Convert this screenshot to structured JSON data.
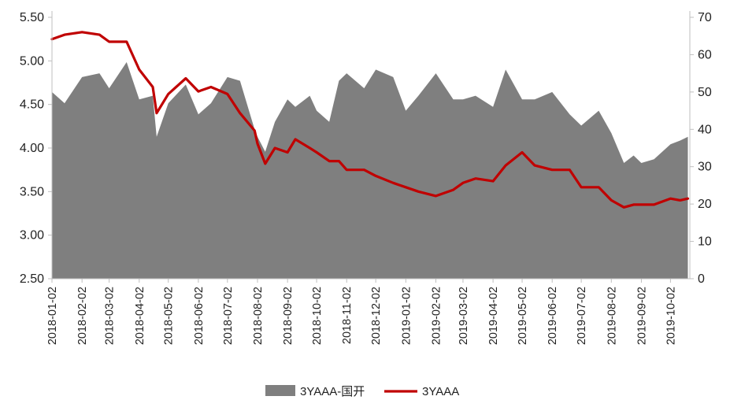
{
  "chart_data": {
    "type": "area+line",
    "x": [
      "2018-01-02",
      "2018-01-15",
      "2018-02-02",
      "2018-02-20",
      "2018-03-02",
      "2018-03-20",
      "2018-04-02",
      "2018-04-16",
      "2018-04-20",
      "2018-05-02",
      "2018-05-20",
      "2018-06-02",
      "2018-06-15",
      "2018-07-02",
      "2018-07-15",
      "2018-07-30",
      "2018-08-02",
      "2018-08-10",
      "2018-08-20",
      "2018-09-02",
      "2018-09-10",
      "2018-09-25",
      "2018-10-02",
      "2018-10-15",
      "2018-10-25",
      "2018-11-02",
      "2018-11-20",
      "2018-12-02",
      "2018-12-20",
      "2019-01-02",
      "2019-01-15",
      "2019-02-02",
      "2019-02-20",
      "2019-03-02",
      "2019-03-15",
      "2019-04-02",
      "2019-04-15",
      "2019-05-02",
      "2019-05-15",
      "2019-06-02",
      "2019-06-20",
      "2019-07-02",
      "2019-07-20",
      "2019-08-02",
      "2019-08-15",
      "2019-08-25",
      "2019-09-02",
      "2019-09-15",
      "2019-10-02",
      "2019-10-12",
      "2019-10-20"
    ],
    "x_tick_labels": [
      "2018-01-02",
      "2018-02-02",
      "2018-03-02",
      "2018-04-02",
      "2018-05-02",
      "2018-06-02",
      "2018-07-02",
      "2018-08-02",
      "2018-09-02",
      "2018-10-02",
      "2018-11-02",
      "2018-12-02",
      "2019-01-02",
      "2019-02-02",
      "2019-03-02",
      "2019-04-02",
      "2019-05-02",
      "2019-06-02",
      "2019-07-02",
      "2019-08-02",
      "2019-09-02",
      "2019-10-02"
    ],
    "y_left_ticks": [
      "2.50",
      "3.00",
      "3.50",
      "4.00",
      "4.50",
      "5.00",
      "5.50"
    ],
    "y_right_ticks": [
      "0",
      "10",
      "20",
      "30",
      "40",
      "50",
      "60",
      "70"
    ],
    "ylim_left": [
      2.5,
      5.5
    ],
    "ylim_right": [
      0,
      70
    ],
    "legend_position": "bottom-center",
    "grid": false,
    "series": [
      {
        "name": "3YAAA-国开",
        "type": "area",
        "axis": "right",
        "color": "#7f7f7f",
        "values": [
          50,
          47,
          54,
          55,
          51,
          58,
          48,
          49,
          38,
          47,
          52,
          44,
          47,
          54,
          53,
          40,
          38,
          34,
          42,
          48,
          46,
          49,
          45,
          42,
          53,
          55,
          51,
          56,
          54,
          45,
          49,
          55,
          48,
          48,
          49,
          46,
          56,
          48,
          48,
          50,
          44,
          41,
          45,
          39,
          31,
          33,
          31,
          32,
          36,
          37,
          38
        ]
      },
      {
        "name": "3YAAA",
        "type": "line",
        "axis": "left",
        "color": "#c00000",
        "values": [
          5.25,
          5.3,
          5.33,
          5.3,
          5.22,
          5.22,
          4.9,
          4.7,
          4.4,
          4.62,
          4.8,
          4.65,
          4.7,
          4.62,
          4.4,
          4.2,
          4.05,
          3.82,
          4.0,
          3.95,
          4.1,
          4.0,
          3.95,
          3.85,
          3.85,
          3.75,
          3.75,
          3.68,
          3.6,
          3.55,
          3.5,
          3.45,
          3.52,
          3.6,
          3.65,
          3.62,
          3.8,
          3.95,
          3.8,
          3.75,
          3.75,
          3.55,
          3.55,
          3.4,
          3.32,
          3.35,
          3.35,
          3.35,
          3.42,
          3.4,
          3.42
        ]
      }
    ]
  }
}
